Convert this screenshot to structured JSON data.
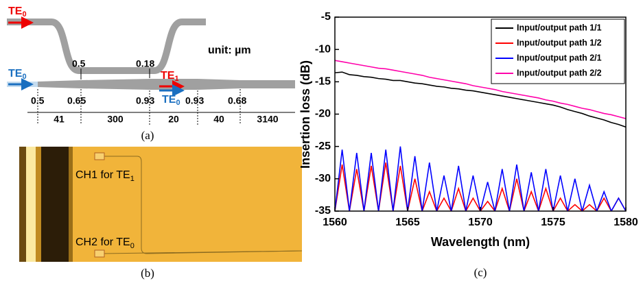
{
  "panel_a": {
    "top_input": {
      "base": "TE",
      "sub": "0"
    },
    "bus_input": {
      "base": "TE",
      "sub": "0"
    },
    "out_red": {
      "base": "TE",
      "sub": "1"
    },
    "out_blue": {
      "base": "TE",
      "sub": "0"
    },
    "gaps": [
      "0.5",
      "0.18"
    ],
    "widths": [
      "0.5",
      "0.65",
      "0.93",
      "0.93",
      "0.68"
    ],
    "lengths": [
      "41",
      "300",
      "20",
      "40",
      "3140"
    ],
    "unit": "unit: µm",
    "caption": "(a)"
  },
  "panel_b": {
    "ch1": {
      "text": "CH1 for TE",
      "sub": "1"
    },
    "ch2": {
      "text": "CH2 for TE",
      "sub": "0"
    },
    "caption": "(b)"
  },
  "chart_data": {
    "type": "line",
    "caption": "(c)",
    "x_label": "Wavelength (nm)",
    "y_label": "Insertion loss (dB)",
    "x": [
      1560,
      1560.5,
      1561,
      1561.5,
      1562,
      1562.5,
      1563,
      1563.5,
      1564,
      1564.5,
      1565,
      1565.5,
      1566,
      1566.5,
      1567,
      1567.5,
      1568,
      1568.5,
      1569,
      1569.5,
      1570,
      1570.5,
      1571,
      1571.5,
      1572,
      1572.5,
      1573,
      1573.5,
      1574,
      1574.5,
      1575,
      1575.5,
      1576,
      1576.5,
      1577,
      1577.5,
      1578,
      1578.5,
      1579,
      1579.5,
      1580
    ],
    "xlim": [
      1560,
      1580
    ],
    "xticks": [
      1560,
      1565,
      1570,
      1575,
      1580
    ],
    "ylim": [
      -35,
      -5
    ],
    "yticks": [
      -35,
      -30,
      -25,
      -20,
      -15,
      -10,
      -5
    ],
    "legend": "upper right",
    "series": [
      {
        "name": "Input/output path 1/1",
        "color": "#000000",
        "values": [
          -13.6,
          -13.5,
          -13.9,
          -14.0,
          -14.2,
          -14.3,
          -14.5,
          -14.6,
          -14.8,
          -14.8,
          -15.0,
          -15.2,
          -15.3,
          -15.5,
          -15.7,
          -15.8,
          -16.0,
          -16.1,
          -16.3,
          -16.4,
          -16.6,
          -16.8,
          -17.0,
          -17.2,
          -17.4,
          -17.6,
          -17.8,
          -18.0,
          -18.2,
          -18.4,
          -18.6,
          -18.9,
          -19.3,
          -19.6,
          -19.9,
          -20.3,
          -20.6,
          -20.9,
          -21.3,
          -21.6,
          -22.0
        ]
      },
      {
        "name": "Input/output path 1/2",
        "color": "#ff0000",
        "values": [
          -35,
          -27.8,
          -35,
          -28.5,
          -35,
          -28,
          -35,
          -27.5,
          -35,
          -28,
          -35,
          -30,
          -35,
          -32,
          -35,
          -33,
          -35,
          -31.5,
          -35,
          -33,
          -35,
          -33.5,
          -35,
          -31.5,
          -35,
          -30,
          -35,
          -32,
          -35,
          -31.5,
          -35,
          -33,
          -35,
          -34,
          -35,
          -34,
          -35,
          -33,
          -35,
          -33,
          -35
        ]
      },
      {
        "name": "Input/output path 2/1",
        "color": "#0000ff",
        "values": [
          -35,
          -25.5,
          -35,
          -26,
          -35,
          -26,
          -35,
          -25.5,
          -35,
          -25,
          -35,
          -26.5,
          -35,
          -27.5,
          -35,
          -29.5,
          -35,
          -28,
          -35,
          -29.5,
          -35,
          -30.5,
          -35,
          -28.5,
          -35,
          -27.8,
          -35,
          -29,
          -35,
          -28.5,
          -35,
          -29.5,
          -35,
          -30,
          -35,
          -31,
          -35,
          -32,
          -35,
          -33,
          -35
        ]
      },
      {
        "name": "Input/output path 2/2",
        "color": "#ff00aa",
        "values": [
          -11.7,
          -11.9,
          -12.1,
          -12.3,
          -12.5,
          -12.7,
          -12.9,
          -13.0,
          -13.2,
          -13.4,
          -13.6,
          -13.8,
          -14.0,
          -14.3,
          -14.5,
          -14.7,
          -14.9,
          -15.1,
          -15.3,
          -15.6,
          -15.8,
          -16.0,
          -16.2,
          -16.5,
          -16.7,
          -16.9,
          -17.1,
          -17.3,
          -17.5,
          -17.8,
          -18.0,
          -18.3,
          -18.5,
          -18.8,
          -19.1,
          -19.3,
          -19.6,
          -19.9,
          -20.1,
          -20.4,
          -20.7
        ]
      }
    ]
  }
}
